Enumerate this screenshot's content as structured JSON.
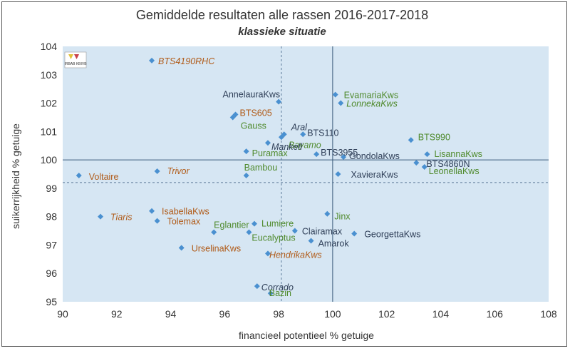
{
  "chart_data": {
    "type": "scatter",
    "title": "Gemiddelde resultaten alle rassen 2016-2017-2018",
    "subtitle": "klassieke situatie",
    "xlabel": "financieel potentieel % getuige",
    "ylabel": "suikerrijkheid % getuige",
    "xlim": [
      90,
      108
    ],
    "ylim": [
      95,
      104
    ],
    "xticks": [
      "90",
      "92",
      "94",
      "96",
      "98",
      "100",
      "102",
      "104",
      "106",
      "108"
    ],
    "yticks": [
      "95",
      "96",
      "97",
      "98",
      "99",
      "100",
      "101",
      "102",
      "103",
      "104"
    ],
    "grid": false,
    "reference_lines": {
      "solid": {
        "x": 100,
        "y": 100
      },
      "dashed": {
        "x": 98.1,
        "y": 99.2
      }
    },
    "logo_text": "IRBAB KBIVB",
    "colors": {
      "background": "#d6e6f3",
      "marker": "#4a90d0",
      "label_default": "#2e3e57",
      "label_green": "#4f8a2c",
      "label_orange": "#b05a17"
    },
    "points": [
      {
        "name": "BTS4190RHC",
        "x": 93.3,
        "y": 103.5,
        "color": "orange",
        "italic": true,
        "anchor": "start",
        "dx": 9,
        "dy": 5
      },
      {
        "name": "AnnelauraKws",
        "x": 98.0,
        "y": 102.05,
        "color": "default",
        "italic": false,
        "anchor": "end",
        "dx": 2,
        "dy": -6
      },
      {
        "name": "EvamariaKws",
        "x": 100.1,
        "y": 102.3,
        "color": "green",
        "italic": false,
        "anchor": "start",
        "dx": 12,
        "dy": 5
      },
      {
        "name": "LonnekaKws",
        "x": 100.3,
        "y": 102.0,
        "color": "green",
        "italic": true,
        "anchor": "start",
        "dx": 8,
        "dy": 5
      },
      {
        "name": "BTS605",
        "x": 96.4,
        "y": 101.6,
        "color": "orange",
        "italic": false,
        "anchor": "start",
        "dx": 6,
        "dy": 2
      },
      {
        "name": "Gauss",
        "x": 96.3,
        "y": 101.5,
        "color": "green",
        "italic": false,
        "anchor": "start",
        "dx": 11,
        "dy": 16
      },
      {
        "name": "Aral",
        "x": 98.2,
        "y": 100.9,
        "color": "default",
        "italic": true,
        "anchor": "start",
        "dx": 10,
        "dy": -6
      },
      {
        "name": "BTS110",
        "x": 98.9,
        "y": 100.9,
        "color": "default",
        "italic": false,
        "anchor": "start",
        "dx": 6,
        "dy": 2
      },
      {
        "name": "Bayamo",
        "x": 98.1,
        "y": 100.8,
        "color": "green",
        "italic": true,
        "anchor": "start",
        "dx": 10,
        "dy": 15
      },
      {
        "name": "Mankell",
        "x": 97.6,
        "y": 100.6,
        "color": "default",
        "italic": true,
        "anchor": "start",
        "dx": 5,
        "dy": 10
      },
      {
        "name": "Puramax",
        "x": 96.8,
        "y": 100.3,
        "color": "green",
        "italic": false,
        "anchor": "start",
        "dx": 8,
        "dy": 7
      },
      {
        "name": "BTS3955",
        "x": 99.4,
        "y": 100.2,
        "color": "default",
        "italic": false,
        "anchor": "start",
        "dx": 6,
        "dy": 2
      },
      {
        "name": "GondolaKws",
        "x": 100.4,
        "y": 100.1,
        "color": "default",
        "italic": false,
        "anchor": "start",
        "dx": 8,
        "dy": 3
      },
      {
        "name": "BTS990",
        "x": 102.9,
        "y": 100.7,
        "color": "green",
        "italic": false,
        "anchor": "start",
        "dx": 10,
        "dy": 0
      },
      {
        "name": "LisannaKws",
        "x": 103.5,
        "y": 100.2,
        "color": "green",
        "italic": false,
        "anchor": "start",
        "dx": 10,
        "dy": 4
      },
      {
        "name": "BTS4860N",
        "x": 103.1,
        "y": 99.9,
        "color": "default",
        "italic": false,
        "anchor": "start",
        "dx": 14,
        "dy": 6
      },
      {
        "name": "LeonellaKws",
        "x": 103.4,
        "y": 99.75,
        "color": "green",
        "italic": false,
        "anchor": "start",
        "dx": 6,
        "dy": 10
      },
      {
        "name": "XavieraKws",
        "x": 100.2,
        "y": 99.5,
        "color": "default",
        "italic": false,
        "anchor": "start",
        "dx": 18,
        "dy": 5
      },
      {
        "name": "Bambou",
        "x": 96.8,
        "y": 99.45,
        "color": "green",
        "italic": false,
        "anchor": "start",
        "dx": -3,
        "dy": -7
      },
      {
        "name": "Voltaire",
        "x": 90.6,
        "y": 99.45,
        "color": "orange",
        "italic": false,
        "anchor": "start",
        "dx": 14,
        "dy": 6
      },
      {
        "name": "Trivor",
        "x": 93.5,
        "y": 99.6,
        "color": "orange",
        "italic": true,
        "anchor": "start",
        "dx": 14,
        "dy": 4
      },
      {
        "name": "Tiaris",
        "x": 91.4,
        "y": 98.0,
        "color": "orange",
        "italic": true,
        "anchor": "start",
        "dx": 14,
        "dy": 5
      },
      {
        "name": "IsabellaKws",
        "x": 93.3,
        "y": 98.2,
        "color": "orange",
        "italic": false,
        "anchor": "start",
        "dx": 14,
        "dy": 5
      },
      {
        "name": "Tolemax",
        "x": 93.5,
        "y": 97.85,
        "color": "orange",
        "italic": false,
        "anchor": "start",
        "dx": 14,
        "dy": 5
      },
      {
        "name": "Jinx",
        "x": 99.8,
        "y": 98.1,
        "color": "green",
        "italic": false,
        "anchor": "start",
        "dx": 10,
        "dy": 8
      },
      {
        "name": "Eglantier",
        "x": 95.6,
        "y": 97.45,
        "color": "green",
        "italic": false,
        "anchor": "start",
        "dx": 0,
        "dy": -6
      },
      {
        "name": "Lumiere",
        "x": 97.1,
        "y": 97.75,
        "color": "green",
        "italic": false,
        "anchor": "start",
        "dx": 10,
        "dy": 4
      },
      {
        "name": "Eucalyptus",
        "x": 96.9,
        "y": 97.45,
        "color": "green",
        "italic": false,
        "anchor": "start",
        "dx": 4,
        "dy": 12
      },
      {
        "name": "Clairamax",
        "x": 98.6,
        "y": 97.5,
        "color": "default",
        "italic": false,
        "anchor": "start",
        "dx": 10,
        "dy": 5
      },
      {
        "name": "GeorgettaKws",
        "x": 100.8,
        "y": 97.4,
        "color": "default",
        "italic": false,
        "anchor": "start",
        "dx": 14,
        "dy": 5
      },
      {
        "name": "Amarok",
        "x": 99.2,
        "y": 97.15,
        "color": "default",
        "italic": false,
        "anchor": "start",
        "dx": 10,
        "dy": 8
      },
      {
        "name": "UrselinaKws",
        "x": 94.4,
        "y": 96.9,
        "color": "orange",
        "italic": false,
        "anchor": "start",
        "dx": 14,
        "dy": 5
      },
      {
        "name": "HendrikaKws",
        "x": 97.6,
        "y": 96.7,
        "color": "orange",
        "italic": true,
        "anchor": "start",
        "dx": 2,
        "dy": 6
      },
      {
        "name": "Corrado",
        "x": 97.2,
        "y": 95.55,
        "color": "default",
        "italic": true,
        "anchor": "start",
        "dx": 6,
        "dy": 6
      },
      {
        "name": "Bazin",
        "x": 97.7,
        "y": 95.3,
        "color": "green",
        "italic": false,
        "anchor": "start",
        "dx": -2,
        "dy": 4
      }
    ]
  }
}
